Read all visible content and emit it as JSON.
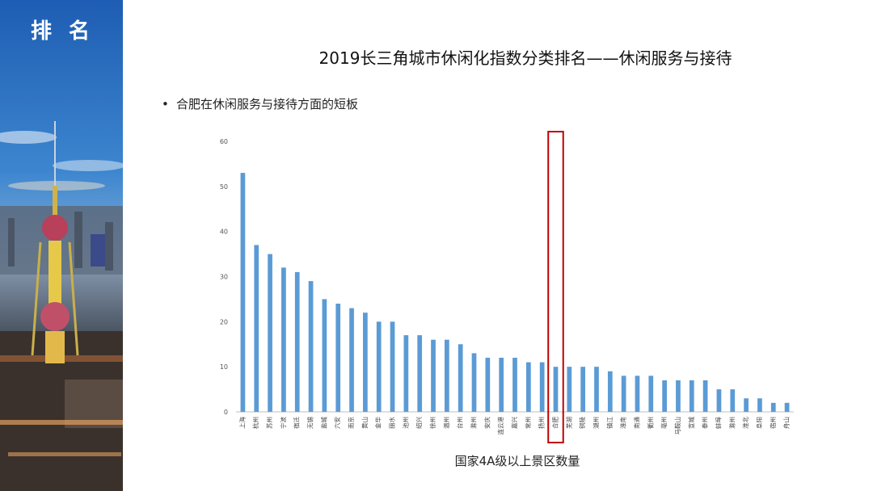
{
  "sidebar": {
    "label": "排 名"
  },
  "header": {
    "title": "2019长三角城市休闲化指数分类排名——休闲服务与接待"
  },
  "bullet": {
    "text": "合肥在休闲服务与接待方面的短板"
  },
  "chart_data": {
    "type": "bar",
    "title": "",
    "xlabel": "国家4A级以上景区数量",
    "ylabel": "",
    "ylim": [
      0,
      60
    ],
    "yticks": [
      0,
      10,
      20,
      30,
      40,
      50,
      60
    ],
    "grid": false,
    "bar_color": "#5b9bd5",
    "highlight_color": "#c00000",
    "highlight_category": "合肥",
    "categories": [
      "上海",
      "杭州",
      "苏州",
      "宁波",
      "宿迁",
      "无锡",
      "盐城",
      "六安",
      "南京",
      "黄山",
      "金华",
      "丽水",
      "池州",
      "绍兴",
      "徐州",
      "温州",
      "台州",
      "滁州",
      "安庆",
      "连云港",
      "嘉兴",
      "常州",
      "扬州",
      "合肥",
      "芜湖",
      "铜陵",
      "湖州",
      "镇江",
      "淮南",
      "南通",
      "衢州",
      "亳州",
      "马鞍山",
      "宣城",
      "泰州",
      "蚌埠",
      "滁州",
      "淮北",
      "阜阳",
      "宿州",
      "舟山"
    ],
    "values": [
      53,
      37,
      35,
      32,
      31,
      29,
      25,
      24,
      23,
      22,
      20,
      20,
      17,
      17,
      16,
      16,
      15,
      13,
      12,
      12,
      12,
      11,
      11,
      10,
      10,
      10,
      10,
      9,
      8,
      8,
      8,
      7,
      7,
      7,
      7,
      5,
      5,
      3,
      3,
      2,
      2
    ]
  }
}
